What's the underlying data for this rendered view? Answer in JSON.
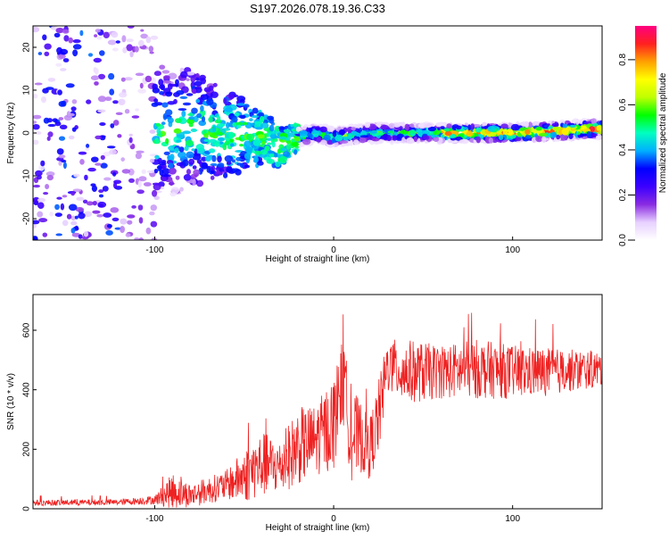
{
  "chart_data": [
    {
      "type": "heatmap",
      "title": "S197.2026.078.19.36.C33",
      "xlabel": "Height of straight line (km)",
      "ylabel": "Frequency (Hz)",
      "xlim": [
        -168,
        150
      ],
      "ylim": [
        -25,
        25
      ],
      "xticks": [
        -100,
        0,
        100
      ],
      "yticks": [
        -20,
        -10,
        0,
        10,
        20
      ],
      "colorbar": {
        "label": "Normalized spectral amplitude",
        "range": [
          0,
          0.95
        ],
        "ticks": [
          0.0,
          0.2,
          0.4,
          0.6,
          0.8
        ],
        "colors": [
          "#ffffff",
          "#e7d0ff",
          "#8a2be2",
          "#3b00ff",
          "#0000ff",
          "#00b0ff",
          "#00ffc0",
          "#00ff00",
          "#c0ff00",
          "#ffff00",
          "#ffa000",
          "#ff2020",
          "#ff0080"
        ]
      },
      "ridge": {
        "description_points": [
          [
            -100,
            0
          ],
          [
            -80,
            1
          ],
          [
            -60,
            0
          ],
          [
            -40,
            -1
          ],
          [
            -30,
            -3
          ],
          [
            -20,
            -1
          ],
          [
            -10,
            0
          ],
          [
            0,
            -1
          ],
          [
            20,
            0
          ],
          [
            60,
            0
          ],
          [
            100,
            0
          ],
          [
            150,
            1
          ]
        ]
      }
    },
    {
      "type": "line",
      "xlabel": "Height of straight line (km)",
      "ylabel": "SNR (10 * v/v)",
      "xlim": [
        -168,
        150
      ],
      "ylim": [
        0,
        720
      ],
      "xticks": [
        -100,
        0,
        100
      ],
      "yticks": [
        0,
        200,
        400,
        600
      ],
      "color": "#ee2222",
      "envelope": {
        "x": [
          -168,
          -120,
          -100,
          -90,
          -80,
          -60,
          -50,
          -40,
          -30,
          -20,
          -10,
          0,
          5,
          10,
          15,
          20,
          25,
          30,
          40,
          60,
          80,
          100,
          120,
          150
        ],
        "mean": [
          20,
          22,
          30,
          60,
          45,
          80,
          110,
          150,
          140,
          210,
          230,
          290,
          430,
          250,
          240,
          200,
          300,
          480,
          460,
          460,
          470,
          460,
          460,
          470
        ],
        "amp": [
          10,
          10,
          15,
          60,
          40,
          50,
          90,
          110,
          90,
          130,
          120,
          160,
          140,
          160,
          120,
          100,
          130,
          90,
          110,
          90,
          100,
          90,
          80,
          60
        ]
      }
    }
  ]
}
